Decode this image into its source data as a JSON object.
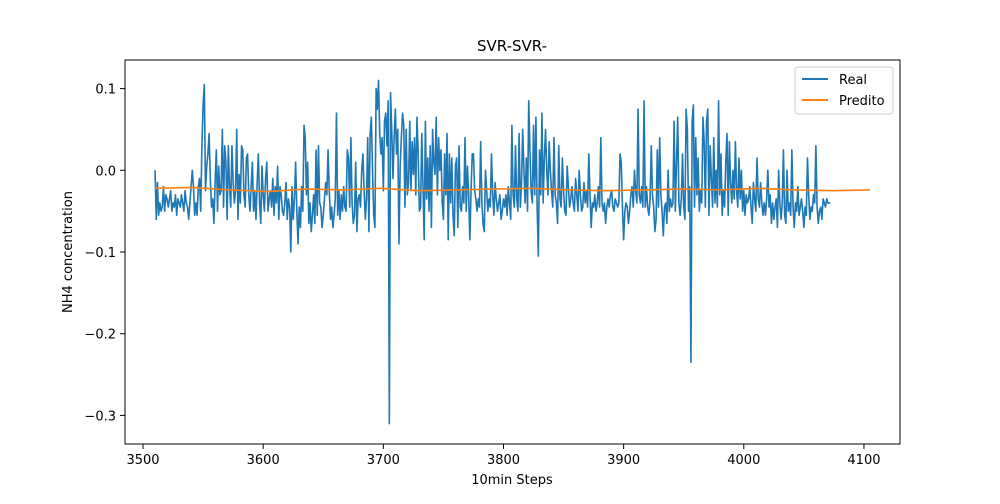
{
  "chart_data": {
    "type": "line",
    "title": "SVR-SVR-",
    "xlabel": "10min Steps",
    "ylabel": "NH4 concentration",
    "xlim": [
      3485,
      4130
    ],
    "ylim": [
      -0.335,
      0.135
    ],
    "xticks": [
      3500,
      3600,
      3700,
      3800,
      3900,
      4000,
      4100
    ],
    "xtick_labels": [
      "3500",
      "3600",
      "3700",
      "3800",
      "3900",
      "4000",
      "4100"
    ],
    "yticks": [
      0.1,
      0.0,
      -0.1,
      -0.2,
      -0.3
    ],
    "ytick_labels": [
      "0.1",
      "0.0",
      "−0.1",
      "−0.2",
      "−0.3"
    ],
    "grid": false,
    "legend_position": "upper right",
    "series": [
      {
        "name": "Real",
        "color": "#1f77b4",
        "x_start": 3510,
        "x_step": 1,
        "values": [
          0.0,
          -0.06,
          -0.015,
          -0.055,
          -0.04,
          -0.05,
          -0.045,
          -0.02,
          -0.05,
          -0.03,
          -0.035,
          -0.045,
          -0.035,
          -0.025,
          -0.05,
          -0.04,
          -0.045,
          -0.03,
          -0.055,
          -0.035,
          -0.04,
          -0.045,
          -0.03,
          -0.04,
          -0.05,
          -0.025,
          -0.04,
          -0.045,
          -0.06,
          -0.04,
          -0.02,
          0.0,
          -0.02,
          -0.055,
          -0.04,
          -0.055,
          -0.02,
          -0.01,
          -0.05,
          0.03,
          0.08,
          0.105,
          -0.025,
          0.005,
          0.02,
          0.045,
          -0.01,
          -0.045,
          -0.035,
          -0.065,
          -0.015,
          0.025,
          -0.05,
          0.005,
          -0.03,
          -0.025,
          0.05,
          -0.045,
          0.03,
          0.01,
          -0.06,
          0.03,
          -0.02,
          -0.045,
          0.03,
          -0.015,
          -0.04,
          -0.025,
          0.05,
          -0.06,
          -0.005,
          -0.04,
          0.03,
          0.025,
          -0.03,
          -0.045,
          0.015,
          0.02,
          -0.03,
          -0.05,
          -0.02,
          0.01,
          -0.05,
          -0.025,
          -0.06,
          -0.015,
          0.02,
          -0.04,
          -0.065,
          0.005,
          -0.03,
          -0.05,
          -0.01,
          0.01,
          -0.05,
          -0.035,
          -0.025,
          -0.045,
          -0.01,
          -0.055,
          -0.02,
          -0.04,
          0.005,
          -0.06,
          -0.02,
          -0.03,
          -0.05,
          -0.055,
          -0.04,
          -0.015,
          -0.06,
          -0.035,
          -0.045,
          -0.1,
          -0.02,
          -0.06,
          -0.035,
          0.01,
          -0.05,
          -0.09,
          -0.045,
          -0.07,
          -0.02,
          -0.05,
          0.055,
          0.04,
          -0.03,
          0.01,
          -0.065,
          -0.04,
          -0.075,
          -0.055,
          -0.03,
          -0.065,
          0.025,
          -0.055,
          0.03,
          -0.04,
          -0.045,
          -0.07,
          -0.055,
          -0.035,
          -0.015,
          -0.03,
          0.025,
          -0.025,
          -0.06,
          -0.045,
          -0.07,
          -0.055,
          -0.035,
          0.07,
          -0.055,
          -0.025,
          -0.06,
          -0.03,
          -0.05,
          -0.02,
          -0.045,
          -0.05,
          0.025,
          0.015,
          -0.045,
          0.04,
          -0.04,
          -0.065,
          -0.055,
          0.01,
          -0.075,
          -0.035,
          -0.03,
          -0.045,
          0.0,
          0.02,
          -0.025,
          -0.06,
          -0.035,
          0.04,
          -0.075,
          0.045,
          0.065,
          0.0,
          -0.055,
          -0.07,
          0.1,
          0.075,
          0.11,
          0.045,
          0.02,
          0.04,
          -0.025,
          0.06,
          0.07,
          0.03,
          0.085,
          -0.31,
          0.095,
          0.05,
          -0.01,
          0.04,
          0.075,
          0.02,
          0.05,
          -0.09,
          0.005,
          0.04,
          0.07,
          0.055,
          -0.045,
          0.05,
          -0.03,
          -0.015,
          0.06,
          -0.025,
          0.035,
          -0.005,
          0.04,
          -0.03,
          0.065,
          0.02,
          -0.05,
          -0.045,
          0.045,
          -0.02,
          -0.085,
          0.06,
          -0.035,
          0.015,
          -0.05,
          0.03,
          -0.07,
          0.05,
          0.01,
          -0.005,
          0.065,
          -0.03,
          0.04,
          0.0,
          0.025,
          -0.04,
          -0.06,
          0.02,
          -0.03,
          0.045,
          -0.085,
          0.02,
          -0.04,
          0.015,
          -0.055,
          -0.08,
          0.005,
          0.015,
          -0.07,
          0.03,
          -0.045,
          -0.05,
          -0.02,
          -0.04,
          0.04,
          -0.05,
          0.005,
          -0.03,
          -0.085,
          -0.025,
          0.02,
          0.02,
          -0.025,
          -0.035,
          -0.05,
          -0.035,
          -0.045,
          0.035,
          -0.04,
          -0.065,
          -0.075,
          0.0,
          -0.025,
          -0.05,
          -0.035,
          -0.045,
          0.02,
          -0.03,
          -0.055,
          -0.015,
          -0.035,
          -0.05,
          -0.04,
          -0.03,
          -0.06,
          -0.05,
          -0.035,
          -0.045,
          -0.03,
          -0.055,
          -0.02,
          -0.04,
          -0.06,
          0.055,
          -0.03,
          -0.045,
          0.03,
          -0.035,
          -0.05,
          0.045,
          -0.045,
          -0.015,
          0.05,
          0.0,
          -0.04,
          0.015,
          -0.05,
          0.085,
          0.025,
          -0.025,
          -0.04,
          0.055,
          -0.03,
          0.065,
          -0.045,
          -0.105,
          0.025,
          -0.03,
          0.07,
          -0.04,
          0.015,
          0.05,
          0.0,
          -0.03,
          0.035,
          0.0,
          -0.025,
          -0.045,
          0.04,
          -0.03,
          -0.04,
          -0.065,
          0.03,
          -0.035,
          -0.045,
          0.015,
          -0.025,
          -0.05,
          -0.055,
          0.005,
          -0.02,
          -0.045,
          -0.035,
          -0.02,
          -0.04,
          -0.05,
          -0.01,
          -0.03,
          -0.05,
          0.0,
          -0.03,
          -0.05,
          -0.045,
          -0.015,
          -0.04,
          -0.025,
          -0.045,
          0.02,
          -0.03,
          -0.07,
          -0.04,
          -0.045,
          -0.03,
          -0.05,
          -0.04,
          -0.02,
          -0.045,
          0.04,
          -0.04,
          -0.05,
          -0.04,
          -0.065,
          -0.045,
          -0.035,
          -0.045,
          -0.03,
          -0.025,
          -0.045,
          -0.05,
          -0.035,
          -0.04,
          -0.045,
          -0.04,
          0.02,
          0.01,
          -0.045,
          -0.085,
          -0.05,
          -0.04,
          -0.045,
          -0.065,
          -0.05,
          -0.03,
          -0.02,
          -0.045,
          0.0,
          -0.025,
          -0.04,
          0.075,
          -0.03,
          -0.04,
          -0.02,
          -0.045,
          0.085,
          -0.045,
          -0.02,
          -0.045,
          -0.055,
          -0.035,
          0.03,
          -0.03,
          -0.045,
          -0.075,
          -0.06,
          0.025,
          -0.045,
          0.04,
          -0.03,
          -0.05,
          -0.08,
          -0.045,
          -0.04,
          -0.065,
          0.0,
          -0.05,
          -0.035,
          -0.045,
          -0.04,
          0.06,
          -0.05,
          0.01,
          0.065,
          -0.04,
          -0.055,
          -0.035,
          0.02,
          -0.045,
          -0.06,
          0.075,
          0.05,
          -0.05,
          -0.02,
          -0.235,
          0.06,
          0.08,
          -0.045,
          0.04,
          -0.03,
          0.015,
          -0.05,
          -0.025,
          -0.04,
          0.065,
          0.035,
          -0.045,
          0.06,
          0.075,
          -0.055,
          0.03,
          -0.01,
          -0.045,
          0.04,
          -0.04,
          0.0,
          -0.045,
          0.085,
          -0.03,
          0.02,
          -0.055,
          -0.025,
          -0.045,
          0.01,
          0.045,
          -0.055,
          0.035,
          -0.015,
          -0.04,
          0.0,
          -0.035,
          0.035,
          -0.025,
          -0.045,
          0.015,
          -0.035,
          0.0,
          -0.05,
          -0.025,
          -0.055,
          -0.03,
          -0.04,
          -0.035,
          -0.02,
          -0.045,
          -0.065,
          -0.015,
          -0.035,
          -0.05,
          0.015,
          -0.035,
          -0.045,
          -0.015,
          -0.04,
          -0.055,
          -0.04,
          -0.055,
          -0.035,
          0.0,
          -0.045,
          -0.03,
          -0.065,
          -0.04,
          -0.06,
          -0.045,
          -0.035,
          -0.07,
          0.0,
          -0.04,
          -0.06,
          -0.04,
          0.025,
          -0.055,
          -0.065,
          0.0,
          -0.05,
          -0.04,
          -0.055,
          0.025,
          -0.045,
          -0.07,
          -0.04,
          -0.05,
          -0.02,
          -0.055,
          -0.045,
          -0.035,
          -0.05,
          -0.07,
          -0.045,
          -0.055,
          0.015,
          -0.03,
          -0.06,
          -0.045,
          -0.05,
          -0.03,
          -0.04,
          0.03,
          -0.045,
          -0.065,
          -0.05,
          -0.045,
          -0.06,
          -0.035,
          -0.04,
          -0.045,
          -0.035,
          -0.04,
          -0.04,
          -0.04
        ]
      },
      {
        "name": "Predito",
        "color": "#ff7f0e",
        "x_start": 3510,
        "x_step": 1,
        "base": -0.024,
        "values": [
          -0.022,
          -0.021,
          -0.024,
          -0.026,
          -0.023,
          -0.024,
          -0.022,
          -0.025,
          -0.024,
          -0.023,
          -0.022,
          -0.024,
          -0.025,
          -0.024,
          -0.023,
          -0.024,
          -0.022,
          -0.024,
          -0.025,
          -0.024
        ]
      }
    ]
  }
}
